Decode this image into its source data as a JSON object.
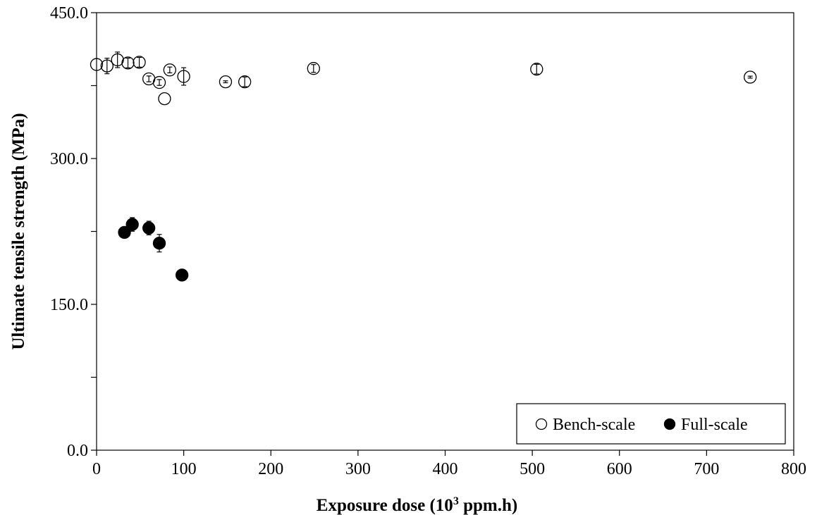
{
  "chart_data": {
    "type": "scatter",
    "xlabel_main": "Exposure dose (10",
    "xlabel_sup": "3",
    "xlabel_tail": " ppm.h)",
    "ylabel": "Ultimate tensile strength (MPa)",
    "xlim": [
      0,
      800
    ],
    "ylim": [
      0,
      450
    ],
    "x_ticks": [
      0,
      100,
      200,
      300,
      400,
      500,
      600,
      700,
      800
    ],
    "x_tick_labels": [
      "0",
      "100",
      "200",
      "300",
      "400",
      "500",
      "600",
      "700",
      "800"
    ],
    "y_ticks": [
      0,
      150,
      300,
      450
    ],
    "y_tick_labels": [
      "0.0",
      "150.0",
      "300.0",
      "450.0"
    ],
    "y_minor_ticks": [
      75,
      225,
      375
    ],
    "grid": false,
    "legend_position": "bottom-right",
    "series": [
      {
        "name": "Bench-scale",
        "marker": "open-circle",
        "color": "#000000",
        "points": [
          {
            "x": 0,
            "y": 396.7,
            "err": 0
          },
          {
            "x": 12,
            "y": 395.2,
            "err": 8
          },
          {
            "x": 24,
            "y": 401.5,
            "err": 8
          },
          {
            "x": 36,
            "y": 398.3,
            "err": 5
          },
          {
            "x": 49,
            "y": 399.0,
            "err": 5
          },
          {
            "x": 60,
            "y": 381.9,
            "err": 3
          },
          {
            "x": 72,
            "y": 378.2,
            "err": 3
          },
          {
            "x": 78,
            "y": 361.5,
            "err": 0
          },
          {
            "x": 84,
            "y": 391.1,
            "err": 3
          },
          {
            "x": 100,
            "y": 384.4,
            "err": 9
          },
          {
            "x": 148,
            "y": 378.9,
            "err": 1
          },
          {
            "x": 170,
            "y": 378.9,
            "err": 5
          },
          {
            "x": 249,
            "y": 392.6,
            "err": 4
          },
          {
            "x": 505,
            "y": 391.9,
            "err": 5
          },
          {
            "x": 750,
            "y": 383.7,
            "err": 1
          }
        ]
      },
      {
        "name": "Full-scale",
        "marker": "filled-circle",
        "color": "#000000",
        "points": [
          {
            "x": 32,
            "y": 224.0,
            "err": 4
          },
          {
            "x": 41,
            "y": 232.2,
            "err": 7
          },
          {
            "x": 60,
            "y": 228.5,
            "err": 7
          },
          {
            "x": 72,
            "y": 212.9,
            "err": 9
          },
          {
            "x": 98,
            "y": 180.1,
            "err": 0
          }
        ]
      }
    ]
  }
}
